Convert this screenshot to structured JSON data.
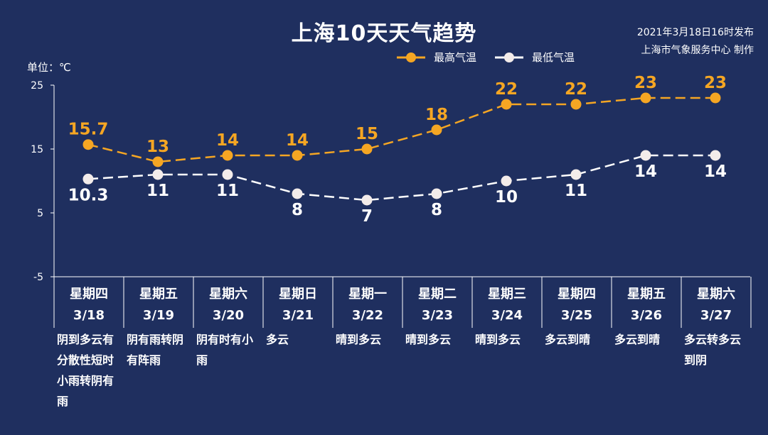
{
  "header": {
    "title": "上海10天天气趋势",
    "publish_line1": "2021年3月18日16时发布",
    "publish_line2": "上海市气象服务中心 制作",
    "unit": "单位：℃"
  },
  "legend": {
    "high_label": "最高气温",
    "low_label": "最低气温"
  },
  "colors": {
    "background": "#1f2f5f",
    "high": "#f5a623",
    "low": "#ffffff",
    "text": "#ffffff"
  },
  "days": [
    {
      "weekday": "星期四",
      "date": "3/18",
      "desc": "阴到多云有分散性短时小雨转阴有雨"
    },
    {
      "weekday": "星期五",
      "date": "3/19",
      "desc": "阴有雨转阴有阵雨"
    },
    {
      "weekday": "星期六",
      "date": "3/20",
      "desc": "阴有时有小雨"
    },
    {
      "weekday": "星期日",
      "date": "3/21",
      "desc": "多云"
    },
    {
      "weekday": "星期一",
      "date": "3/22",
      "desc": "晴到多云"
    },
    {
      "weekday": "星期二",
      "date": "3/23",
      "desc": "晴到多云"
    },
    {
      "weekday": "星期三",
      "date": "3/24",
      "desc": "晴到多云"
    },
    {
      "weekday": "星期四",
      "date": "3/25",
      "desc": "多云到晴"
    },
    {
      "weekday": "星期五",
      "date": "3/26",
      "desc": "多云到晴"
    },
    {
      "weekday": "星期六",
      "date": "3/27",
      "desc": "多云转多云到阴"
    }
  ],
  "chart_data": {
    "type": "line",
    "title": "上海10天天气趋势",
    "ylabel": "单位：℃",
    "categories": [
      "3/18",
      "3/19",
      "3/20",
      "3/21",
      "3/22",
      "3/23",
      "3/24",
      "3/25",
      "3/26",
      "3/27"
    ],
    "series": [
      {
        "name": "最高气温",
        "color": "#f5a623",
        "values": [
          15.7,
          13,
          14,
          14,
          15,
          18,
          22,
          22,
          23,
          23
        ]
      },
      {
        "name": "最低气温",
        "color": "#ffffff",
        "values": [
          10.3,
          11,
          11,
          8,
          7,
          8,
          10,
          11,
          14,
          14
        ]
      }
    ],
    "ylim": [
      -5,
      25
    ],
    "yticks": [
      -5,
      5,
      15,
      25
    ],
    "grid": false,
    "line_style": "dashed",
    "legend_position": "top-right"
  }
}
